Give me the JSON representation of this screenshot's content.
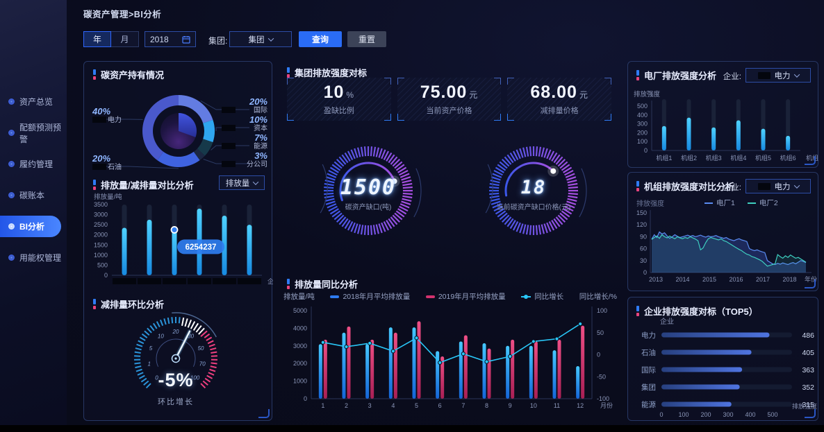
{
  "breadcrumb": "碳资产管理>BI分析",
  "sidebar": {
    "items": [
      "资产总览",
      "配额预测预警",
      "履约管理",
      "碳账本",
      "BI分析",
      "用能权管理"
    ],
    "active": "BI分析"
  },
  "filters": {
    "year": "年",
    "month": "月",
    "date": "2018",
    "group_label": "集团:",
    "group_value": "集团",
    "query": "查询",
    "reset": "重置"
  },
  "panels": {
    "holdings": {
      "title": "碳资产持有情况"
    },
    "compare": {
      "title": "排放量/减排量对比分析",
      "dropdown": "排放量"
    },
    "mom": {
      "title": "减排量环比分析",
      "value": "-5%",
      "label": "环比增长"
    },
    "benchmark": {
      "title": "集团排放强度对标",
      "cards": [
        {
          "value": "10",
          "unit": "%",
          "label": "盈缺比例"
        },
        {
          "value": "75.00",
          "unit": "元",
          "label": "当前资产价格"
        },
        {
          "value": "68.00",
          "unit": "元",
          "label": "减排量价格"
        }
      ]
    },
    "rings": [
      {
        "value": "1500",
        "label": "碳资产缺口(吨)"
      },
      {
        "value": "18",
        "label": "当前碳资产缺口价格(元)"
      }
    ],
    "yoy": {
      "title": "排放量同比分析"
    },
    "plant": {
      "title": "电厂排放强度分析",
      "filter_label": "企业:",
      "filter_value": "电力"
    },
    "unit_cmp": {
      "title": "机组排放强度对比分析",
      "filter_label": "企业:",
      "filter_value": "电力"
    },
    "top5": {
      "title": "企业排放强度对标（TOP5）"
    }
  },
  "chart_data": [
    {
      "id": "holdings-donut",
      "type": "pie",
      "title": "碳资产持有情况",
      "name_prefix_redacted": true,
      "slices": [
        {
          "label": "国际",
          "value": 20,
          "color": "#637ce2",
          "side": "right"
        },
        {
          "label": "资本",
          "value": 10,
          "color": "#2fa6f0",
          "side": "right"
        },
        {
          "label": "能源",
          "value": 7,
          "color": "#16394a",
          "side": "right"
        },
        {
          "label": "分公司",
          "value": 3,
          "color": "#1c2742",
          "side": "right"
        },
        {
          "label": "石油",
          "value": 20,
          "color": "#3f63e0",
          "side": "left"
        },
        {
          "label": "电力",
          "value": 40,
          "color": "#4a59cc",
          "side": "left"
        }
      ]
    },
    {
      "id": "emission-compare-bar",
      "type": "bar",
      "title": "排放量/减排量对比分析",
      "ylabel": "排放量/吨",
      "xlabel": "企业",
      "ylim": [
        0,
        3500
      ],
      "yticks": [
        0,
        500,
        1000,
        1500,
        2000,
        2500,
        3000,
        3500
      ],
      "categories": [
        "",
        "",
        "",
        "",
        "",
        ""
      ],
      "categories_redacted": true,
      "values": [
        2350,
        2750,
        2250,
        3300,
        2950,
        2500
      ],
      "track_max": 3500,
      "tooltip": {
        "index": 2,
        "text": "6254237"
      }
    },
    {
      "id": "mom-gauge",
      "type": "gauge",
      "title": "减排量环比分析",
      "tick_labels": [
        "0",
        "1",
        "5",
        "10",
        "20",
        "30",
        "50",
        "70",
        "100"
      ],
      "pointer_fraction": 0.6,
      "value": "-5%",
      "value_label": "环比增长"
    },
    {
      "id": "yoy-combo",
      "type": "bar",
      "title": "排放量同比分析",
      "ylabel_left": "排放量/吨",
      "ylabel_right": "同比增长/%",
      "xlabel": "月份",
      "categories": [
        "1",
        "2",
        "3",
        "4",
        "5",
        "6",
        "7",
        "8",
        "9",
        "10",
        "11",
        "12"
      ],
      "ylim_left": [
        0,
        5000
      ],
      "yticks_left": [
        0,
        1000,
        2000,
        3000,
        4000,
        5000
      ],
      "ylim_right": [
        -100,
        100
      ],
      "yticks_right": [
        -100,
        -50,
        0,
        50,
        100
      ],
      "series": [
        {
          "name": "2018年月平均排放量",
          "type": "bar",
          "color_top": "#45c8ff",
          "color": "#2e7bf0",
          "values": [
            3100,
            3750,
            3100,
            4050,
            4050,
            2700,
            3250,
            3150,
            3000,
            3000,
            2750,
            1850
          ]
        },
        {
          "name": "2019年月平均排放量",
          "type": "bar",
          "color_top": "#ef4f86",
          "color": "#c22a62",
          "values": [
            3350,
            4100,
            3350,
            3750,
            4400,
            2400,
            3600,
            2850,
            3350,
            3250,
            3350,
            4150
          ]
        },
        {
          "name": "同比增长",
          "type": "line",
          "axis": "right",
          "color": "#29c7f7",
          "values": [
            28,
            18,
            26,
            8,
            38,
            -18,
            2,
            -16,
            -4,
            30,
            36,
            70
          ]
        }
      ]
    },
    {
      "id": "plant-bar",
      "type": "bar",
      "title": "电厂排放强度分析",
      "ylabel": "排放强度",
      "xlabel": "机组",
      "ylim": [
        0,
        500
      ],
      "yticks": [
        0,
        100,
        200,
        300,
        400,
        500
      ],
      "categories": [
        "机组1",
        "机组2",
        "机组3",
        "机组4",
        "机组5",
        "机组6"
      ],
      "values": [
        275,
        370,
        260,
        340,
        245,
        165
      ],
      "track_max": 520
    },
    {
      "id": "unit-line",
      "type": "line",
      "title": "机组排放强度对比分析",
      "ylabel": "排放强度",
      "xlabel": "年份",
      "xticks": [
        2013,
        2014,
        2015,
        2016,
        2017,
        2018
      ],
      "ylim": [
        0,
        150
      ],
      "yticks": [
        0,
        30,
        60,
        90,
        120,
        150
      ],
      "series": [
        {
          "name": "电厂1",
          "color": "#5a8cf2",
          "values": [
            84,
            95,
            88,
            102,
            97,
            100,
            92,
            86,
            90,
            95,
            91,
            88,
            90,
            92,
            94,
            91,
            93,
            90,
            92,
            94,
            91,
            89,
            92,
            90,
            91,
            93,
            90,
            88,
            86,
            88,
            84,
            82,
            80,
            83,
            85,
            82,
            80,
            78,
            60,
            57,
            55,
            57,
            54,
            52,
            50,
            30,
            26,
            22,
            20,
            23,
            21,
            24,
            22,
            20,
            23,
            25,
            22,
            26,
            30,
            28,
            25
          ]
        },
        {
          "name": "电厂2",
          "color": "#3ecfc0",
          "values": [
            83,
            88,
            92,
            86,
            95,
            90,
            87,
            92,
            88,
            85,
            90,
            87,
            85,
            88,
            86,
            90,
            87,
            84,
            80,
            57,
            62,
            75,
            85,
            88,
            86,
            84,
            82,
            85,
            80,
            78,
            74,
            70,
            66,
            62,
            58,
            55,
            50,
            46,
            44,
            40,
            38,
            35,
            32,
            28,
            22,
            16,
            18,
            20,
            22,
            45,
            40,
            36,
            42,
            38,
            44,
            40,
            36,
            38,
            34,
            30,
            26
          ]
        }
      ]
    },
    {
      "id": "top5-hbar",
      "type": "bar",
      "orientation": "horizontal",
      "title": "企业排放强度对标（TOP5）",
      "ylabel": "企业",
      "xlabel": "排放强度",
      "categories": [
        "电力",
        "石油",
        "国际",
        "集团",
        "能源"
      ],
      "values": [
        486,
        405,
        363,
        352,
        315
      ],
      "xlim": [
        0,
        500
      ],
      "xticks": [
        0,
        100,
        200,
        300,
        400,
        500
      ]
    }
  ]
}
